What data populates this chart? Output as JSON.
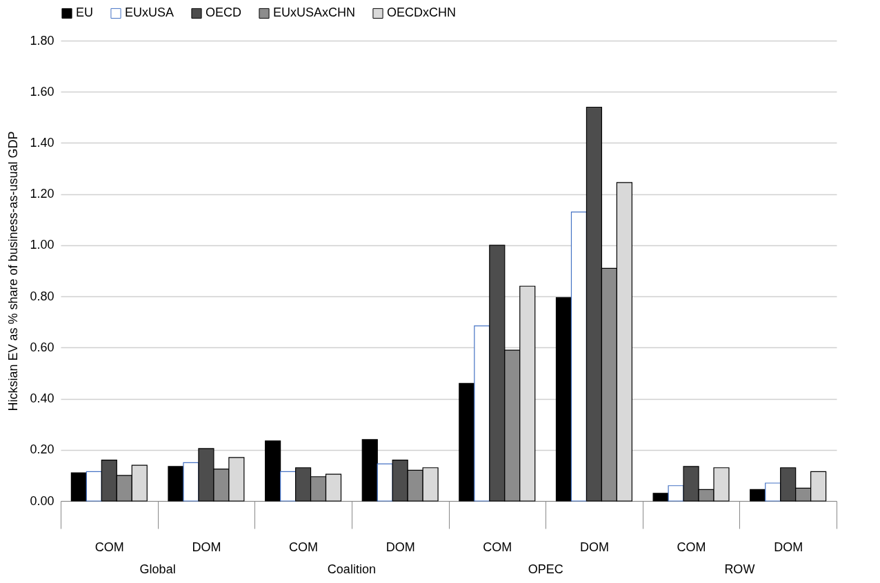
{
  "chart_data": {
    "type": "bar",
    "ylabel": "Hicksian EV as % share of business-as-usual GDP",
    "categories": [
      "COM",
      "DOM",
      "COM",
      "DOM",
      "COM",
      "DOM",
      "COM",
      "DOM"
    ],
    "annotations": [
      "Global",
      "Coalition",
      "OPEC",
      "ROW"
    ],
    "series": [
      {
        "name": "EU",
        "color": "#000000",
        "values": [
          0.11,
          0.135,
          0.235,
          0.24,
          0.46,
          0.795,
          0.03,
          0.045
        ]
      },
      {
        "name": "EUxUSA",
        "color": "#ffffff",
        "values": [
          0.115,
          0.15,
          0.115,
          0.145,
          0.685,
          1.13,
          0.06,
          0.07
        ]
      },
      {
        "name": "OECD",
        "color": "#4d4d4d",
        "values": [
          0.16,
          0.205,
          0.13,
          0.16,
          1.0,
          1.54,
          0.135,
          0.13
        ]
      },
      {
        "name": "EUxUSAxCHN",
        "color": "#8c8c8c",
        "values": [
          0.1,
          0.125,
          0.095,
          0.12,
          0.59,
          0.91,
          0.045,
          0.05
        ]
      },
      {
        "name": "OECDxCHN",
        "color": "#d9d9d9",
        "values": [
          0.14,
          0.17,
          0.105,
          0.13,
          0.84,
          1.245,
          0.13,
          0.115
        ]
      }
    ],
    "ylim": [
      0,
      1.8
    ],
    "yticks": [
      {
        "value": 0,
        "label": "0.00"
      },
      {
        "value": 0.2,
        "label": "0.20"
      },
      {
        "value": 0.4,
        "label": "0.40"
      },
      {
        "value": 0.6,
        "label": "0.60"
      },
      {
        "value": 0.8,
        "label": "0.80"
      },
      {
        "value": 1,
        "label": "1.00"
      },
      {
        "value": 1.2,
        "label": "1.20"
      },
      {
        "value": 1.4,
        "label": "1.40"
      },
      {
        "value": 1.6,
        "label": "1.60"
      },
      {
        "value": 1.8,
        "label": "1.80"
      }
    ],
    "grid": "y",
    "legend": "top"
  }
}
